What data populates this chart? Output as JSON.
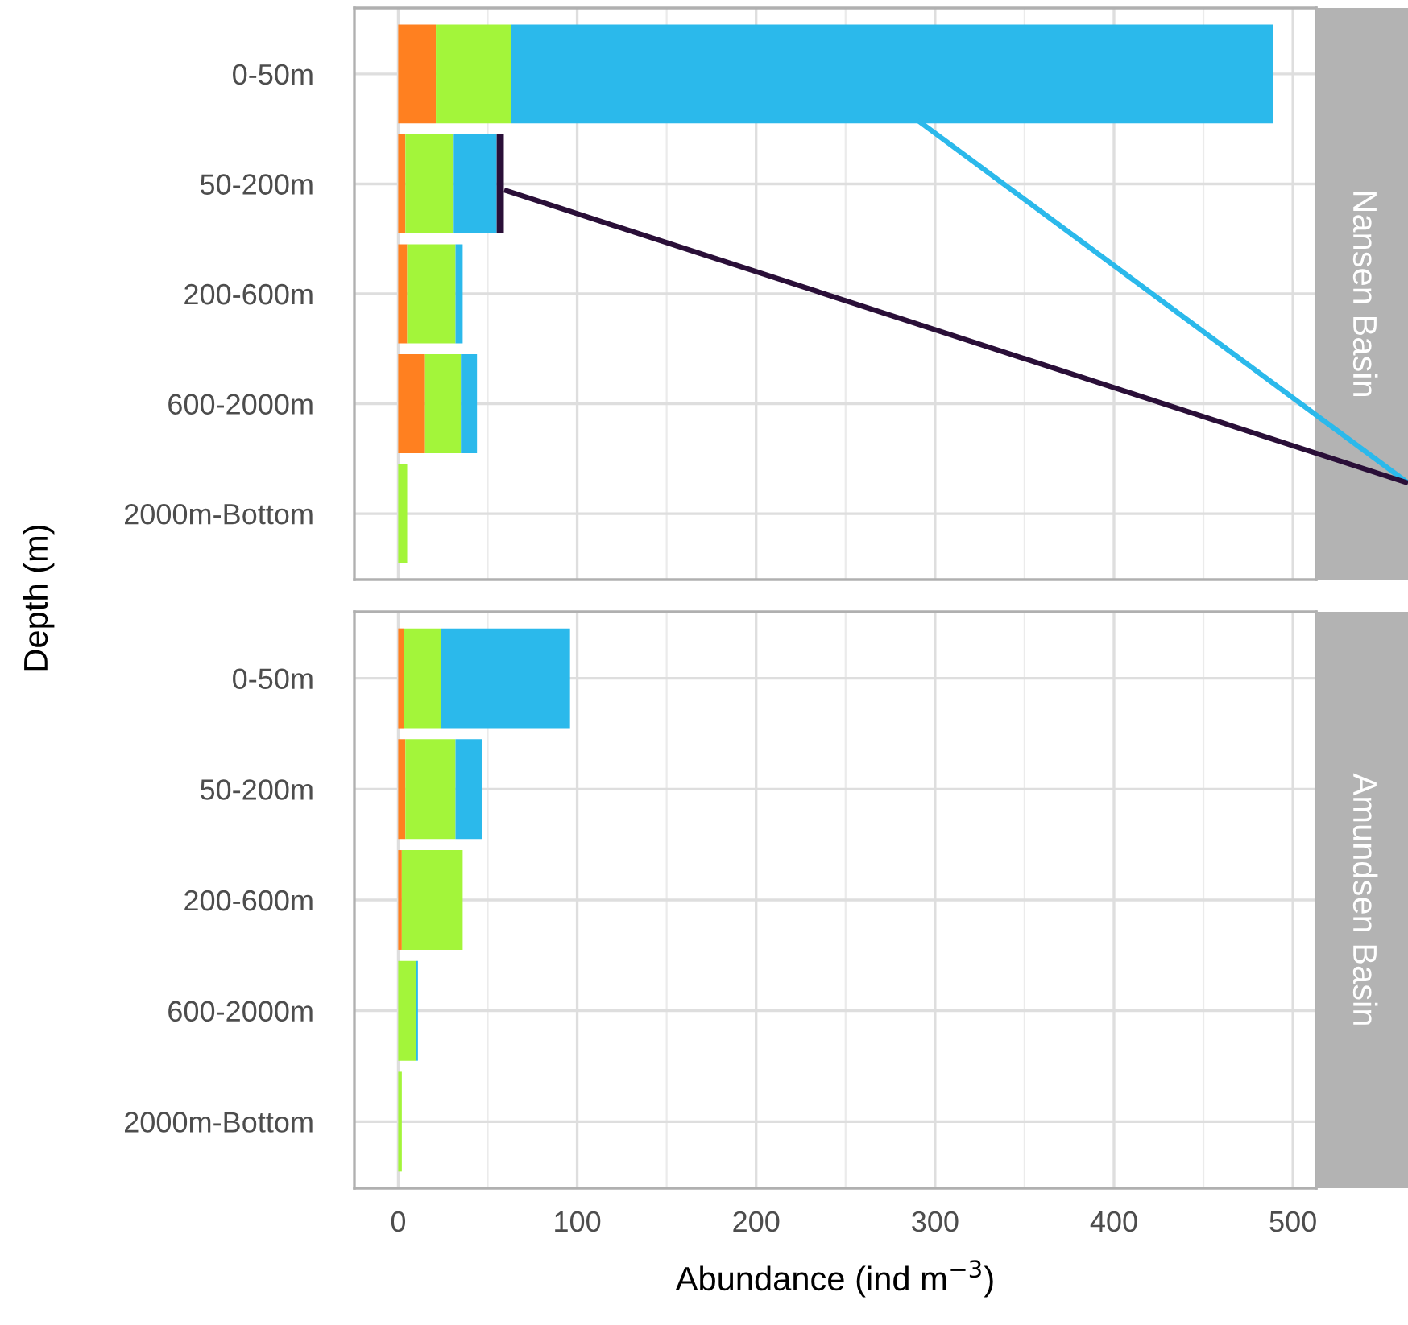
{
  "chart_data": [
    {
      "type": "bar",
      "orientation": "horizontal",
      "stacked": true,
      "annotations": [
        "Nansen Basin"
      ],
      "ylabel": "Depth (m)",
      "categories": [
        "0-50m",
        "50-200m",
        "200-600m",
        "600-2000m",
        "2000m-Bottom"
      ],
      "series": [
        {
          "color": "#ff8020",
          "values": [
            21,
            4,
            5,
            15,
            0
          ]
        },
        {
          "color": "#a3f53a",
          "values": [
            42,
            27,
            27,
            20,
            5
          ]
        },
        {
          "color": "#2bb9eb",
          "values": [
            426,
            24,
            4,
            9,
            0
          ]
        },
        {
          "color": "#2a0f38",
          "values": [
            0,
            4,
            0,
            0,
            0
          ]
        }
      ],
      "xlim": [
        -24.5,
        513
      ],
      "xticks": [
        0,
        100,
        200,
        300,
        400,
        500
      ],
      "grid": true,
      "tick_labels": "y"
    },
    {
      "type": "bar",
      "orientation": "horizontal",
      "stacked": true,
      "annotations": [
        "Amundsen Basin"
      ],
      "xlabel": "Abundance (ind m$^{−3}$)",
      "categories": [
        "0-50m",
        "50-200m",
        "200-600m",
        "600-2000m",
        "2000m-Bottom"
      ],
      "series": [
        {
          "color": "#ff8020",
          "values": [
            3,
            4,
            2,
            0,
            0
          ]
        },
        {
          "color": "#a3f53a",
          "values": [
            21,
            28,
            34,
            10,
            2
          ]
        },
        {
          "color": "#2bb9eb",
          "values": [
            72,
            15,
            0,
            1,
            0
          ]
        },
        {
          "color": "#2a0f38",
          "values": [
            0,
            0,
            0,
            0,
            0
          ]
        }
      ],
      "xlim": [
        -24.5,
        513
      ],
      "xticks": [
        0,
        100,
        200,
        300,
        400,
        500
      ],
      "grid": true
    }
  ]
}
